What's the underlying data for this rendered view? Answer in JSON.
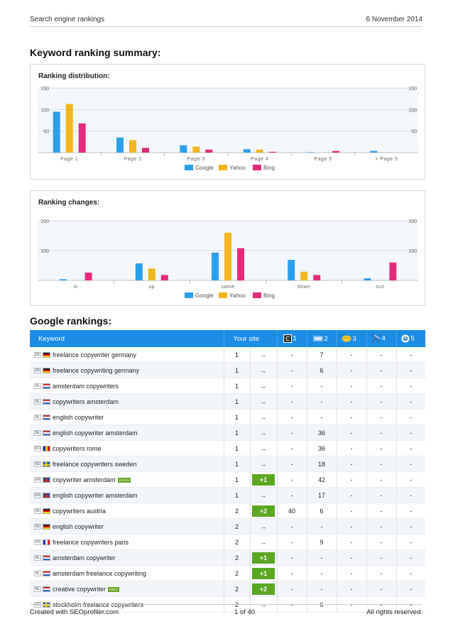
{
  "header": {
    "left": "Search engine rankings",
    "right": "6 November 2014"
  },
  "summary_title": "Keyword ranking summary:",
  "colors": {
    "google": "#2ba0ea",
    "yahoo": "#f3b620",
    "bing": "#e62a7b",
    "table_header": "#1c8de5",
    "change_badge": "#5aa821"
  },
  "chart_data": [
    {
      "type": "bar",
      "title": "Ranking distribution:",
      "categories": [
        "Page 1",
        "Page 2",
        "Page 3",
        "Page 4",
        "Page 5",
        "> Page 5"
      ],
      "series": [
        {
          "name": "Google",
          "values": [
            95,
            35,
            17,
            8,
            1,
            4
          ]
        },
        {
          "name": "Yahoo",
          "values": [
            113,
            29,
            14,
            7,
            0,
            0
          ]
        },
        {
          "name": "Bing",
          "values": [
            68,
            11,
            7,
            2,
            4,
            0
          ]
        }
      ],
      "yticks": [
        50,
        100,
        150
      ],
      "ylim": [
        0,
        150
      ]
    },
    {
      "type": "bar",
      "title": "Ranking changes:",
      "categories": [
        "in",
        "up",
        "same",
        "down",
        "out"
      ],
      "series": [
        {
          "name": "Google",
          "values": [
            4,
            57,
            93,
            69,
            7
          ]
        },
        {
          "name": "Yahoo",
          "values": [
            0,
            40,
            160,
            29,
            0
          ]
        },
        {
          "name": "Bing",
          "values": [
            26,
            18,
            108,
            18,
            60
          ]
        }
      ],
      "yticks": [
        100,
        200
      ],
      "ylim": [
        0,
        200
      ]
    }
  ],
  "google_title": "Google rankings:",
  "table": {
    "headers": {
      "keyword": "Keyword",
      "site": "Your site",
      "c1": "1",
      "c2": "2",
      "c3": "3",
      "c4": "4",
      "c5": "5"
    },
    "rows": [
      {
        "cc": "DE",
        "flag": "de",
        "kw": "freelance copywriter germany",
        "tag": "",
        "pos": "1",
        "chg": "↔",
        "c1": "-",
        "c2": "7",
        "c3": "-",
        "c4": "-",
        "c5": "-"
      },
      {
        "cc": "DE",
        "flag": "de",
        "kw": "freelance copywriting germany",
        "tag": "",
        "pos": "1",
        "chg": "↔",
        "c1": "-",
        "c2": "6",
        "c3": "-",
        "c4": "-",
        "c5": "-"
      },
      {
        "cc": "NL",
        "flag": "nl",
        "kw": "amsterdam copywriters",
        "tag": "",
        "pos": "1",
        "chg": "↔",
        "c1": "-",
        "c2": "-",
        "c3": "-",
        "c4": "-",
        "c5": "-"
      },
      {
        "cc": "NL",
        "flag": "nl",
        "kw": "copywriters amsterdam",
        "tag": "",
        "pos": "1",
        "chg": "↔",
        "c1": "-",
        "c2": "-",
        "c3": "-",
        "c4": "-",
        "c5": "-"
      },
      {
        "cc": "NL",
        "flag": "nl",
        "kw": "english copywriter",
        "tag": "",
        "pos": "1",
        "chg": "↔",
        "c1": "-",
        "c2": "-",
        "c3": "-",
        "c4": "-",
        "c5": "-"
      },
      {
        "cc": "NL",
        "flag": "nl",
        "kw": "english copywriter amsterdam",
        "tag": "",
        "pos": "1",
        "chg": "↔",
        "c1": "-",
        "c2": "36",
        "c3": "-",
        "c4": "-",
        "c5": "-"
      },
      {
        "cc": "RO",
        "flag": "ro",
        "kw": "copywriters rome",
        "tag": "",
        "pos": "1",
        "chg": "↔",
        "c1": "-",
        "c2": "36",
        "c3": "-",
        "c4": "-",
        "c5": "-"
      },
      {
        "cc": "SE",
        "flag": "se",
        "kw": "freelance copywriters sweden",
        "tag": "",
        "pos": "1",
        "chg": "↔",
        "c1": "-",
        "c2": "18",
        "c3": "-",
        "c4": "-",
        "c5": "-"
      },
      {
        "cc": "EN",
        "flag": "en",
        "kw": "copywriter amsterdam",
        "tag": "LOCAL",
        "pos": "1",
        "chg": "+1",
        "c1": "-",
        "c2": "42",
        "c3": "-",
        "c4": "-",
        "c5": "-"
      },
      {
        "cc": "EN",
        "flag": "en",
        "kw": "english copywriter amsterdam",
        "tag": "",
        "pos": "1",
        "chg": "↔",
        "c1": "-",
        "c2": "17",
        "c3": "-",
        "c4": "-",
        "c5": "-"
      },
      {
        "cc": "DE",
        "flag": "de",
        "kw": "copywriters austria",
        "tag": "",
        "pos": "2",
        "chg": "+2",
        "c1": "40",
        "c2": "6",
        "c3": "-",
        "c4": "-",
        "c5": "-"
      },
      {
        "cc": "DE",
        "flag": "de",
        "kw": "english copywriter",
        "tag": "",
        "pos": "2",
        "chg": "↔",
        "c1": "-",
        "c2": "-",
        "c3": "-",
        "c4": "-",
        "c5": "-"
      },
      {
        "cc": "FR",
        "flag": "fr",
        "kw": "freelance copywriters paris",
        "tag": "",
        "pos": "2",
        "chg": "↔",
        "c1": "-",
        "c2": "9",
        "c3": "-",
        "c4": "-",
        "c5": "-"
      },
      {
        "cc": "NL",
        "flag": "nl",
        "kw": "amsterdam copywriter",
        "tag": "",
        "pos": "2",
        "chg": "+1",
        "c1": "-",
        "c2": "-",
        "c3": "-",
        "c4": "-",
        "c5": "-"
      },
      {
        "cc": "NL",
        "flag": "nl",
        "kw": "amsterdam freelance copywriting",
        "tag": "",
        "pos": "2",
        "chg": "+1",
        "c1": "-",
        "c2": "-",
        "c3": "-",
        "c4": "-",
        "c5": "-"
      },
      {
        "cc": "NL",
        "flag": "nl",
        "kw": "creative copywriter",
        "tag": "IMGS",
        "pos": "2",
        "chg": "+2",
        "c1": "-",
        "c2": "-",
        "c3": "-",
        "c4": "-",
        "c5": "-"
      },
      {
        "cc": "SE",
        "flag": "se",
        "kw": "stockholm freelance copywriters",
        "tag": "",
        "pos": "2",
        "chg": "↔",
        "c1": "-",
        "c2": "6",
        "c3": "-",
        "c4": "-",
        "c5": "-"
      }
    ]
  },
  "footer": {
    "left": "Created with SEOprofiler.com",
    "center": "1 of 40",
    "right": "All rights reserved."
  }
}
